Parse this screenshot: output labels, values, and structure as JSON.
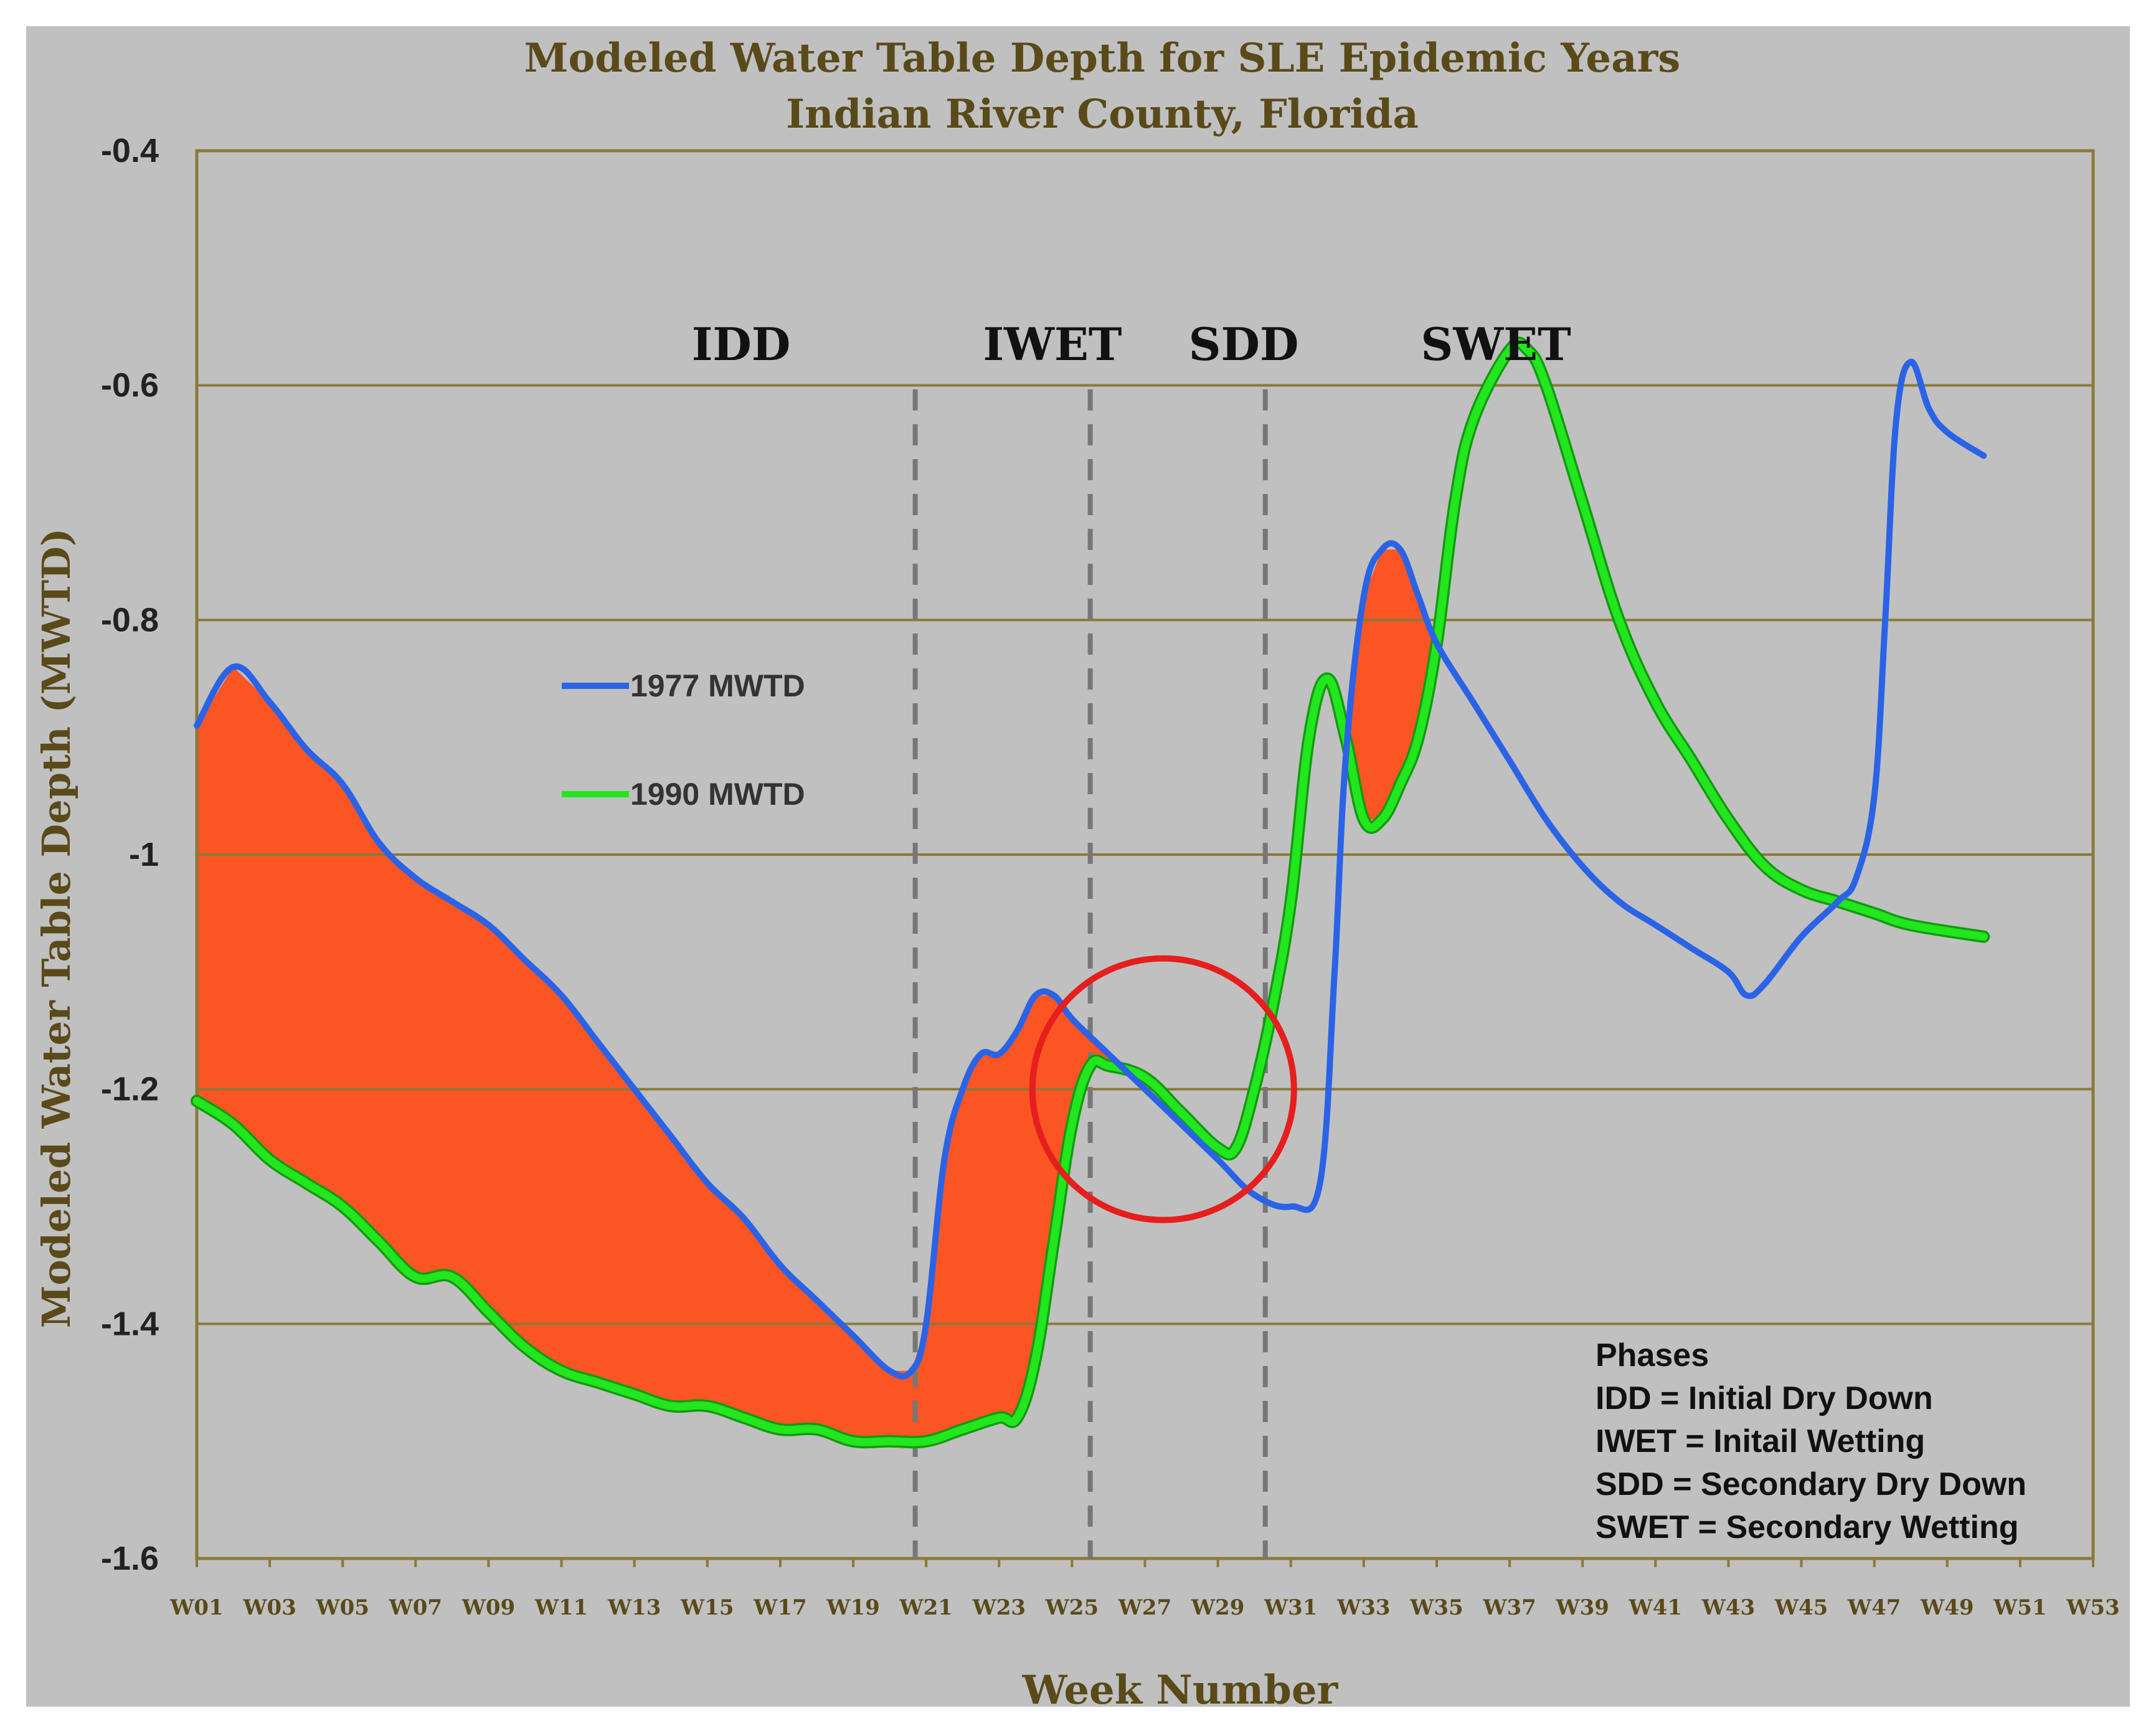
{
  "colors": {
    "background": "#c0c0c0",
    "axis_text": "#5a4a1a",
    "grid": "#8a7a3a",
    "series_1977": "#2b63e6",
    "series_1990": "#22e61e",
    "fill": "#fa5523",
    "circle": "#e61e1e",
    "divider": "#777777"
  },
  "chart_data": {
    "type": "line",
    "title": "Modeled Water Table Depth for SLE Epidemic Years",
    "subtitle": "Indian River County, Florida",
    "xlabel": "Week Number",
    "ylabel": "Modeled Water Table Depth (MWTD)",
    "ylim": [
      -1.6,
      -0.4
    ],
    "xlim": [
      1,
      53
    ],
    "y_ticks": [
      -0.4,
      -0.6,
      -0.8,
      -1,
      -1.2,
      -1.4,
      -1.6
    ],
    "y_tick_labels": [
      "-0.4",
      "-0.6",
      "-0.8",
      "-1",
      "-1.2",
      "-1.4",
      "-1.6"
    ],
    "x_tick_labels": [
      "W01",
      "W03",
      "W05",
      "W07",
      "W09",
      "W11",
      "W13",
      "W15",
      "W17",
      "W19",
      "W21",
      "W23",
      "W25",
      "W27",
      "W29",
      "W31",
      "W33",
      "W35",
      "W37",
      "W39",
      "W41",
      "W43",
      "W45",
      "W47",
      "W49",
      "W51",
      "W53"
    ],
    "series": [
      {
        "name": "1977 MWTD",
        "color": "#2b63e6",
        "points": [
          [
            1,
            -0.89
          ],
          [
            2,
            -0.84
          ],
          [
            3,
            -0.87
          ],
          [
            4,
            -0.91
          ],
          [
            5,
            -0.94
          ],
          [
            6,
            -0.99
          ],
          [
            7,
            -1.02
          ],
          [
            8,
            -1.04
          ],
          [
            9,
            -1.06
          ],
          [
            10,
            -1.09
          ],
          [
            11,
            -1.12
          ],
          [
            12,
            -1.16
          ],
          [
            13,
            -1.2
          ],
          [
            14,
            -1.24
          ],
          [
            15,
            -1.28
          ],
          [
            16,
            -1.31
          ],
          [
            17,
            -1.35
          ],
          [
            18,
            -1.38
          ],
          [
            19,
            -1.41
          ],
          [
            20,
            -1.44
          ],
          [
            20.6,
            -1.44
          ],
          [
            21,
            -1.4
          ],
          [
            21.5,
            -1.26
          ],
          [
            22,
            -1.2
          ],
          [
            22.5,
            -1.17
          ],
          [
            23,
            -1.17
          ],
          [
            23.5,
            -1.15
          ],
          [
            24,
            -1.12
          ],
          [
            24.5,
            -1.12
          ],
          [
            25,
            -1.14
          ],
          [
            26,
            -1.17
          ],
          [
            27,
            -1.2
          ],
          [
            28,
            -1.23
          ],
          [
            29,
            -1.26
          ],
          [
            30,
            -1.29
          ],
          [
            31,
            -1.3
          ],
          [
            31.8,
            -1.28
          ],
          [
            32.2,
            -1.1
          ],
          [
            32.5,
            -0.92
          ],
          [
            33,
            -0.78
          ],
          [
            33.5,
            -0.74
          ],
          [
            34,
            -0.74
          ],
          [
            34.5,
            -0.78
          ],
          [
            35,
            -0.82
          ],
          [
            36,
            -0.87
          ],
          [
            37,
            -0.92
          ],
          [
            38,
            -0.97
          ],
          [
            39,
            -1.01
          ],
          [
            40,
            -1.04
          ],
          [
            41,
            -1.06
          ],
          [
            42,
            -1.08
          ],
          [
            43,
            -1.1
          ],
          [
            43.5,
            -1.12
          ],
          [
            44,
            -1.11
          ],
          [
            45,
            -1.07
          ],
          [
            46,
            -1.04
          ],
          [
            46.5,
            -1.02
          ],
          [
            47,
            -0.95
          ],
          [
            47.3,
            -0.8
          ],
          [
            47.6,
            -0.63
          ],
          [
            48,
            -0.58
          ],
          [
            48.5,
            -0.62
          ],
          [
            49,
            -0.64
          ],
          [
            50,
            -0.66
          ]
        ]
      },
      {
        "name": "1990 MWTD",
        "color": "#22e61e",
        "points": [
          [
            1,
            -1.21
          ],
          [
            2,
            -1.23
          ],
          [
            3,
            -1.26
          ],
          [
            4,
            -1.28
          ],
          [
            5,
            -1.3
          ],
          [
            6,
            -1.33
          ],
          [
            7,
            -1.36
          ],
          [
            8,
            -1.36
          ],
          [
            9,
            -1.39
          ],
          [
            10,
            -1.42
          ],
          [
            11,
            -1.44
          ],
          [
            12,
            -1.45
          ],
          [
            13,
            -1.46
          ],
          [
            14,
            -1.47
          ],
          [
            15,
            -1.47
          ],
          [
            16,
            -1.48
          ],
          [
            17,
            -1.49
          ],
          [
            18,
            -1.49
          ],
          [
            19,
            -1.5
          ],
          [
            20,
            -1.5
          ],
          [
            21,
            -1.5
          ],
          [
            22,
            -1.49
          ],
          [
            23,
            -1.48
          ],
          [
            23.5,
            -1.48
          ],
          [
            24,
            -1.43
          ],
          [
            24.5,
            -1.33
          ],
          [
            25,
            -1.23
          ],
          [
            25.5,
            -1.18
          ],
          [
            26,
            -1.18
          ],
          [
            27,
            -1.19
          ],
          [
            28,
            -1.22
          ],
          [
            29,
            -1.25
          ],
          [
            29.5,
            -1.25
          ],
          [
            30,
            -1.2
          ],
          [
            30.5,
            -1.13
          ],
          [
            31,
            -1.04
          ],
          [
            31.5,
            -0.9
          ],
          [
            32,
            -0.85
          ],
          [
            32.5,
            -0.9
          ],
          [
            33,
            -0.97
          ],
          [
            33.5,
            -0.97
          ],
          [
            34,
            -0.94
          ],
          [
            34.5,
            -0.9
          ],
          [
            35,
            -0.82
          ],
          [
            35.5,
            -0.7
          ],
          [
            36,
            -0.63
          ],
          [
            37,
            -0.57
          ],
          [
            37.5,
            -0.57
          ],
          [
            38,
            -0.6
          ],
          [
            39,
            -0.7
          ],
          [
            40,
            -0.8
          ],
          [
            41,
            -0.87
          ],
          [
            42,
            -0.92
          ],
          [
            43,
            -0.97
          ],
          [
            44,
            -1.01
          ],
          [
            45,
            -1.03
          ],
          [
            46,
            -1.04
          ],
          [
            47,
            -1.05
          ],
          [
            48,
            -1.06
          ],
          [
            50,
            -1.07
          ]
        ]
      }
    ],
    "phase_labels": [
      "IDD",
      "IWET",
      "SDD",
      "SWET"
    ],
    "phase_dividers_week": [
      20.7,
      25.5,
      30.3
    ],
    "highlight_circle_center": [
      27.5,
      -1.2
    ],
    "legend": [
      {
        "label": "1977 MWTD",
        "color": "#2b63e6"
      },
      {
        "label": "1990 MWTD",
        "color": "#22e61e"
      }
    ],
    "notes": {
      "heading": "Phases",
      "lines": [
        "IDD = Initial Dry Down",
        "IWET = Initail Wetting",
        "SDD = Secondary Dry Down",
        "SWET = Secondary Wetting"
      ]
    }
  }
}
